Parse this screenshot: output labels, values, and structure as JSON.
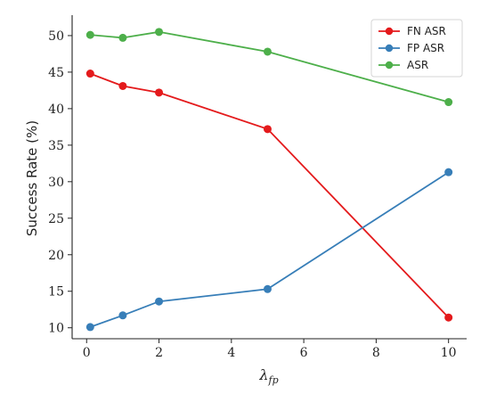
{
  "chart_data": {
    "type": "line",
    "title": "",
    "xlabel": "λ",
    "xlabel_sub": "fp",
    "ylabel": "Success Rate (%)",
    "xlim": [
      -0.4,
      10.5
    ],
    "ylim": [
      8.5,
      52.8
    ],
    "xticks": [
      0,
      2,
      4,
      6,
      8,
      10
    ],
    "yticks": [
      10,
      15,
      20,
      25,
      30,
      35,
      40,
      45,
      50
    ],
    "grid": false,
    "legend_position": "top-right",
    "series": [
      {
        "name": "FN ASR",
        "color": "#e41a1c",
        "x": [
          0.1,
          1,
          2,
          5,
          10
        ],
        "y": [
          44.8,
          43.1,
          42.2,
          37.2,
          11.4
        ]
      },
      {
        "name": "FP ASR",
        "color": "#377eb8",
        "x": [
          0.1,
          1,
          2,
          5,
          10
        ],
        "y": [
          10.1,
          11.7,
          13.6,
          15.3,
          31.3
        ]
      },
      {
        "name": "ASR",
        "color": "#4daf4a",
        "x": [
          0.1,
          1,
          2,
          5,
          10
        ],
        "y": [
          50.1,
          49.7,
          50.5,
          47.8,
          40.9
        ]
      }
    ]
  }
}
